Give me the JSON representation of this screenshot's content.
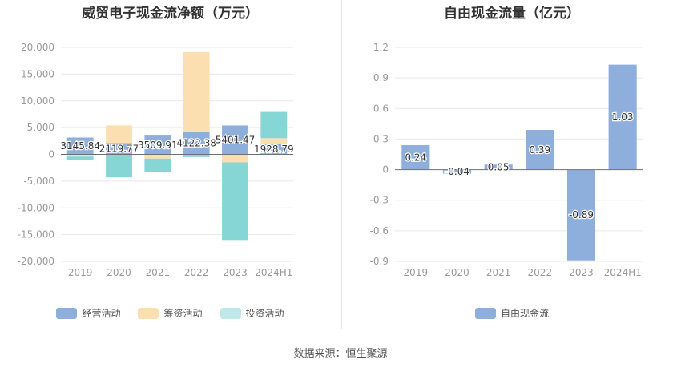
{
  "source": "数据来源：恒生聚源",
  "chart_data": [
    {
      "type": "bar",
      "stacked": true,
      "title": "威贸电子现金流净额（万元）",
      "categories": [
        "2019",
        "2020",
        "2021",
        "2022",
        "2023",
        "2024H1"
      ],
      "ylim": [
        -20000,
        20000
      ],
      "yticks": [
        20000,
        15000,
        10000,
        5000,
        0,
        -5000,
        -10000,
        -15000,
        -20000
      ],
      "ytick_labels": [
        "20,000",
        "15,000",
        "10,000",
        "5,000",
        "0",
        "-5,000",
        "-10,000",
        "-15,000",
        "-20,000"
      ],
      "grid": true,
      "legend_position": "bottom",
      "series": [
        {
          "name": "经营活动",
          "color": "#8eaedc",
          "values": [
            3145.84,
            2119.77,
            3509.91,
            4122.38,
            5401.47,
            1928.79
          ]
        },
        {
          "name": "筹资活动",
          "color": "#fbdfb0",
          "values": [
            -400,
            3300,
            -800,
            15000,
            -1500,
            1100
          ]
        },
        {
          "name": "投资活动",
          "color": "#86d6d6",
          "values": [
            -700,
            -4300,
            -2500,
            -500,
            -14500,
            4900
          ]
        }
      ],
      "data_labels": [
        "3145.84",
        "2119.77",
        "3509.91",
        "4122.38",
        "5401.47",
        "1928.79"
      ]
    },
    {
      "type": "bar",
      "title": "自由现金流量（亿元）",
      "categories": [
        "2019",
        "2020",
        "2021",
        "2022",
        "2023",
        "2024H1"
      ],
      "ylim": [
        -0.9,
        1.2
      ],
      "yticks": [
        1.2,
        0.9,
        0.6,
        0.3,
        0,
        -0.3,
        -0.6,
        -0.9
      ],
      "ytick_labels": [
        "1.2",
        "0.9",
        "0.6",
        "0.3",
        "0",
        "-0.3",
        "-0.6",
        "-0.9"
      ],
      "grid": true,
      "legend_position": "bottom",
      "series": [
        {
          "name": "自由现金流",
          "color": "#8eaedc",
          "values": [
            0.24,
            -0.04,
            0.05,
            0.39,
            -0.89,
            1.03
          ]
        }
      ],
      "data_labels": [
        "0.24",
        "-0.04",
        "0.05",
        "0.39",
        "-0.89",
        "1.03"
      ]
    }
  ]
}
